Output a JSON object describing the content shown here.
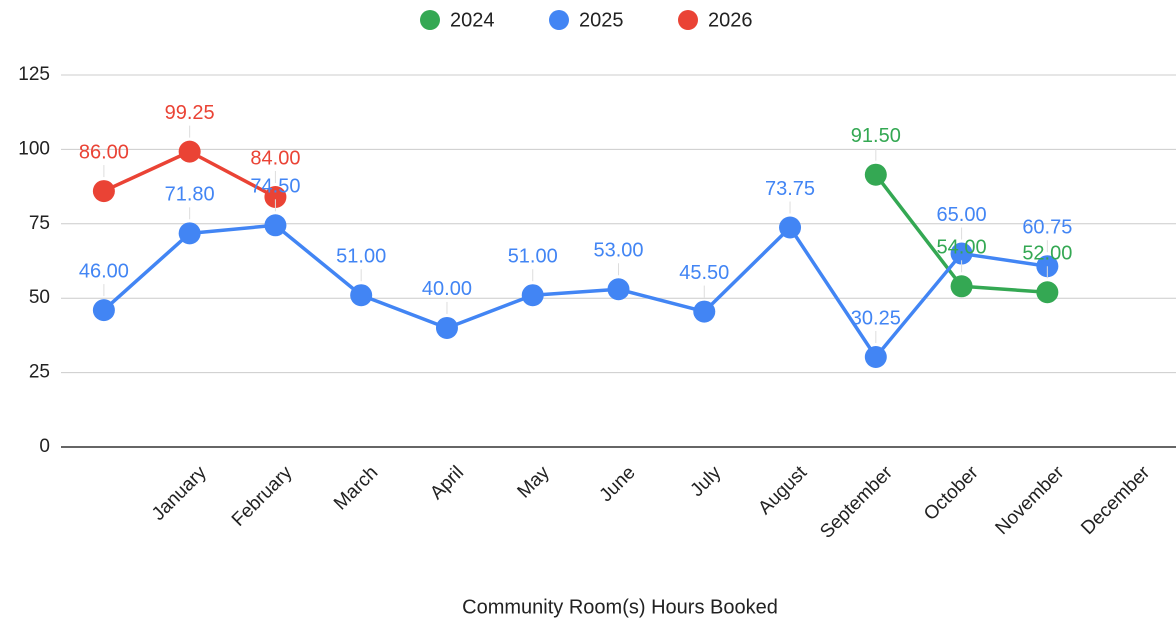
{
  "chart_data": {
    "type": "line",
    "title": "Community Room(s) Hours Booked",
    "categories": [
      null,
      "January",
      "February",
      "March",
      "April",
      "May",
      "June",
      "July",
      "August",
      "September",
      "October",
      "November",
      "December"
    ],
    "series": [
      {
        "name": "2024",
        "color": "#34a853",
        "values": [
          null,
          null,
          null,
          null,
          null,
          null,
          null,
          null,
          null,
          91.5,
          54,
          52,
          null
        ],
        "value_labels": [
          null,
          null,
          null,
          null,
          null,
          null,
          null,
          null,
          null,
          "91.50",
          "54.00",
          "52.00",
          null
        ]
      },
      {
        "name": "2025",
        "color": "#4285f4",
        "values": [
          46,
          71.8,
          74.5,
          51,
          40,
          51,
          53,
          45.5,
          73.75,
          30.25,
          65,
          60.75,
          null
        ],
        "value_labels": [
          "46.00",
          "71.80",
          "74.50",
          "51.00",
          "40.00",
          "51.00",
          "53.00",
          "45.50",
          "73.75",
          "30.25",
          "65.00",
          "60.75",
          null
        ]
      },
      {
        "name": "2026",
        "color": "#ea4335",
        "values": [
          86,
          99.25,
          84,
          null,
          null,
          null,
          null,
          null,
          null,
          null,
          null,
          null,
          null
        ],
        "value_labels": [
          "86.00",
          "99.25",
          "84.00",
          null,
          null,
          null,
          null,
          null,
          null,
          null,
          null,
          null,
          null
        ]
      }
    ],
    "ylim": [
      0,
      125
    ],
    "yticks": [
      0,
      25,
      50,
      75,
      100,
      125
    ],
    "grid": true,
    "legend": "top"
  }
}
